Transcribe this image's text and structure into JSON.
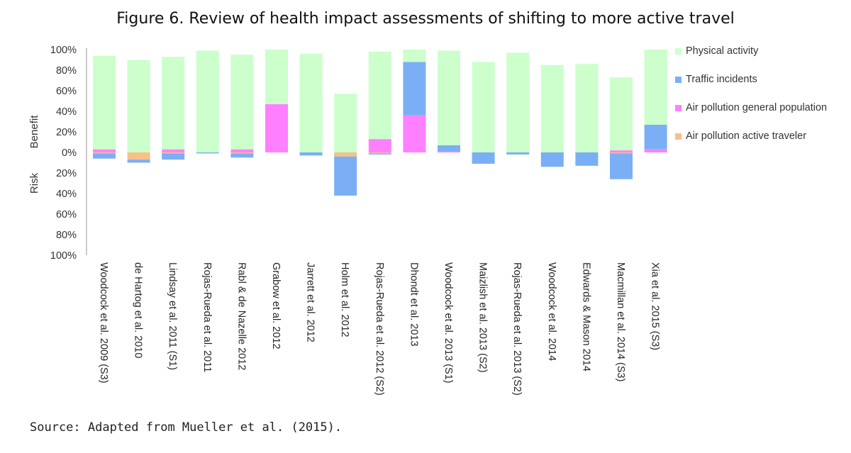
{
  "figure_title": "Figure 6. Review of health impact assessments of shifting to more active travel",
  "source_note": "Source: Adapted from Mueller et al. (2015).",
  "chart_data": {
    "type": "bar",
    "stacked": true,
    "title": "Figure 6. Review of health impact assessments of shifting to more active travel",
    "ylabel_top": "Benefit",
    "ylabel_bottom": "Risk",
    "ylim": [
      -100,
      100
    ],
    "y_ticks": [
      100,
      80,
      60,
      40,
      20,
      0,
      -20,
      -40,
      -60,
      -80,
      -100
    ],
    "y_tick_labels": [
      "100%",
      "80%",
      "60%",
      "40%",
      "20%",
      "0%",
      "20%",
      "40%",
      "60%",
      "80%",
      "100%"
    ],
    "legend_position": "right",
    "categories": [
      "Woodcock et al. 2009 (S3)",
      "de Hartog et al. 2010",
      "Lindsay et al. 2011 (S1)",
      "Rojas-Rueda et al. 2011",
      "Rabl & de Nazelle 2012",
      "Grabow et al. 2012",
      "Jarrett et al. 2012",
      "Holm et al. 2012",
      "Rojas-Rueda et al. 2012 (S2)",
      "Dhondt et al. 2013",
      "Woodcock et al. 2013 (S1)",
      "Maizlish et al. 2013 (S2)",
      "Rojas-Rueda et al. 2013 (S2)",
      "Woodcock et al. 2014",
      "Edwards & Mason 2014",
      "Macmillan et al. 2014 (S3)",
      "Xia et al. 2015 (S3)"
    ],
    "series": [
      {
        "name": "Physical activity",
        "color": "#ccffcc",
        "values": [
          91,
          90,
          90,
          99,
          92,
          53,
          96,
          57,
          85,
          12,
          92,
          88,
          97,
          85,
          86,
          71,
          73
        ]
      },
      {
        "name": "Traffic incidents",
        "color": "#7aaff5",
        "values": [
          -5,
          -3,
          -6,
          -1,
          -4,
          0,
          -3,
          -38,
          -1,
          52,
          6,
          -11,
          -2,
          -14,
          -13,
          -25,
          24
        ]
      },
      {
        "name": "Air pollution general population",
        "color": "#ff80ff",
        "values": [
          3,
          0,
          3,
          0,
          3,
          47,
          0,
          0,
          13,
          36,
          1,
          0,
          0,
          0,
          0,
          2,
          3
        ]
      },
      {
        "name": "Air pollution active traveler",
        "color": "#f8c08a",
        "values": [
          -1,
          -7,
          -1,
          0,
          -1,
          0,
          0,
          -4,
          -1,
          0,
          0,
          0,
          0,
          0,
          0,
          -1,
          0
        ]
      }
    ]
  }
}
